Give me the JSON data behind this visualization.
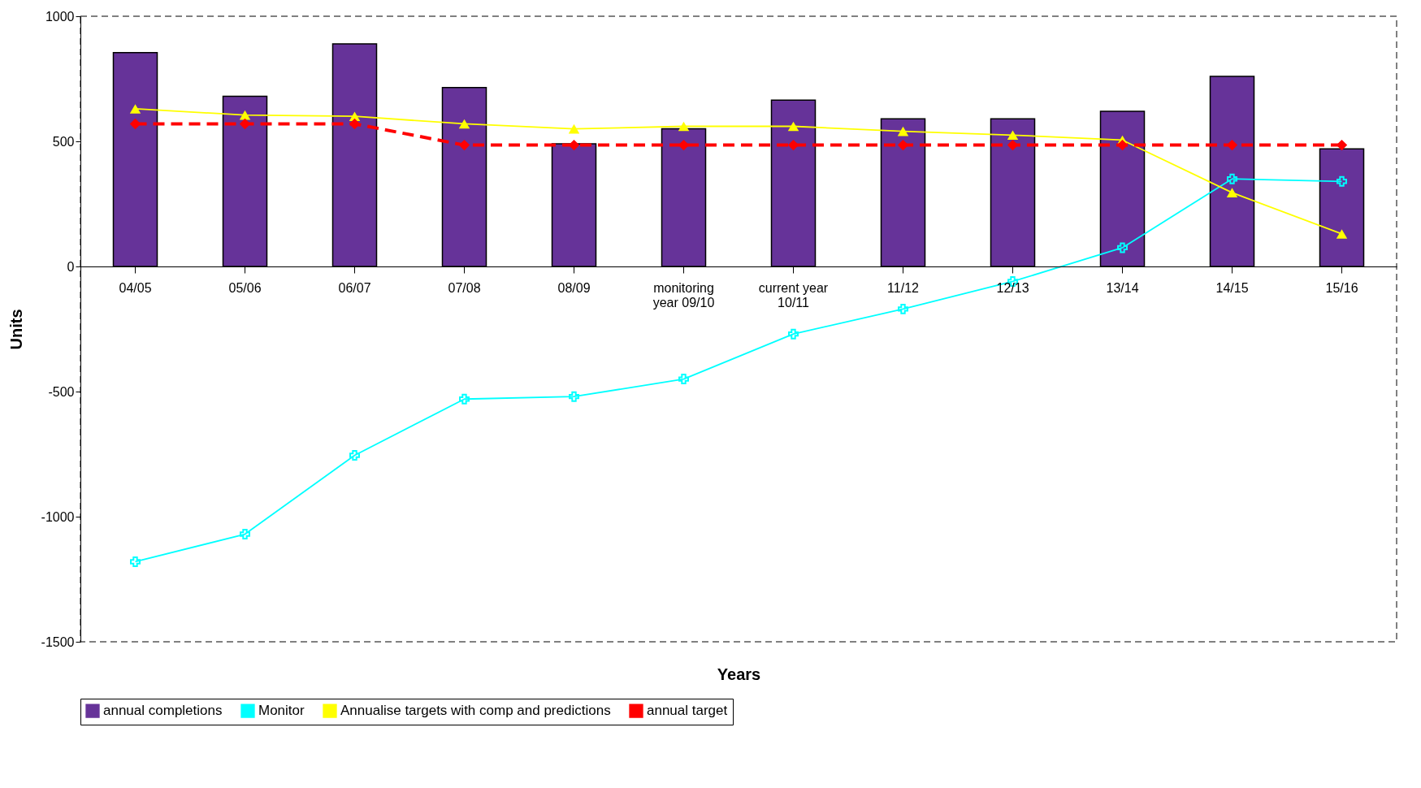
{
  "chart_data": {
    "type": "bar",
    "xlabel": "Years",
    "ylabel": "Units",
    "categories": [
      "04/05",
      "05/06",
      "06/07",
      "07/08",
      "08/09",
      "monitoring year  09/10",
      "current year 10/11",
      "11/12",
      "12/13",
      "13/14",
      "14/15",
      "15/16"
    ],
    "series": [
      {
        "name": "annual completions",
        "color": "#663399",
        "values": [
          855,
          680,
          890,
          715,
          490,
          550,
          665,
          590,
          590,
          620,
          760,
          470
        ]
      },
      {
        "name": "Monitor",
        "type": "line",
        "color": "#00ffff",
        "marker": "cross",
        "line_style": "solid",
        "values": [
          -1180,
          -1070,
          -755,
          -530,
          -520,
          -450,
          -270,
          -170,
          -60,
          75,
          350,
          340
        ]
      },
      {
        "name": "Annualise targets with comp and predictions",
        "type": "line",
        "color": "#ffff00",
        "marker": "triangle",
        "line_style": "solid",
        "values": [
          630,
          605,
          600,
          570,
          550,
          560,
          560,
          540,
          525,
          505,
          295,
          130
        ]
      },
      {
        "name": "annual target",
        "type": "line",
        "color": "#ff0000",
        "marker": "diamond",
        "line_style": "dashed",
        "values": [
          570,
          570,
          570,
          485,
          485,
          485,
          485,
          485,
          485,
          485,
          485,
          485
        ]
      }
    ],
    "ylim": [
      -1500,
      1000
    ],
    "yticks": [
      -1500,
      -1000,
      -500,
      0,
      500,
      1000
    ],
    "grid": false,
    "legend": "bottom"
  }
}
